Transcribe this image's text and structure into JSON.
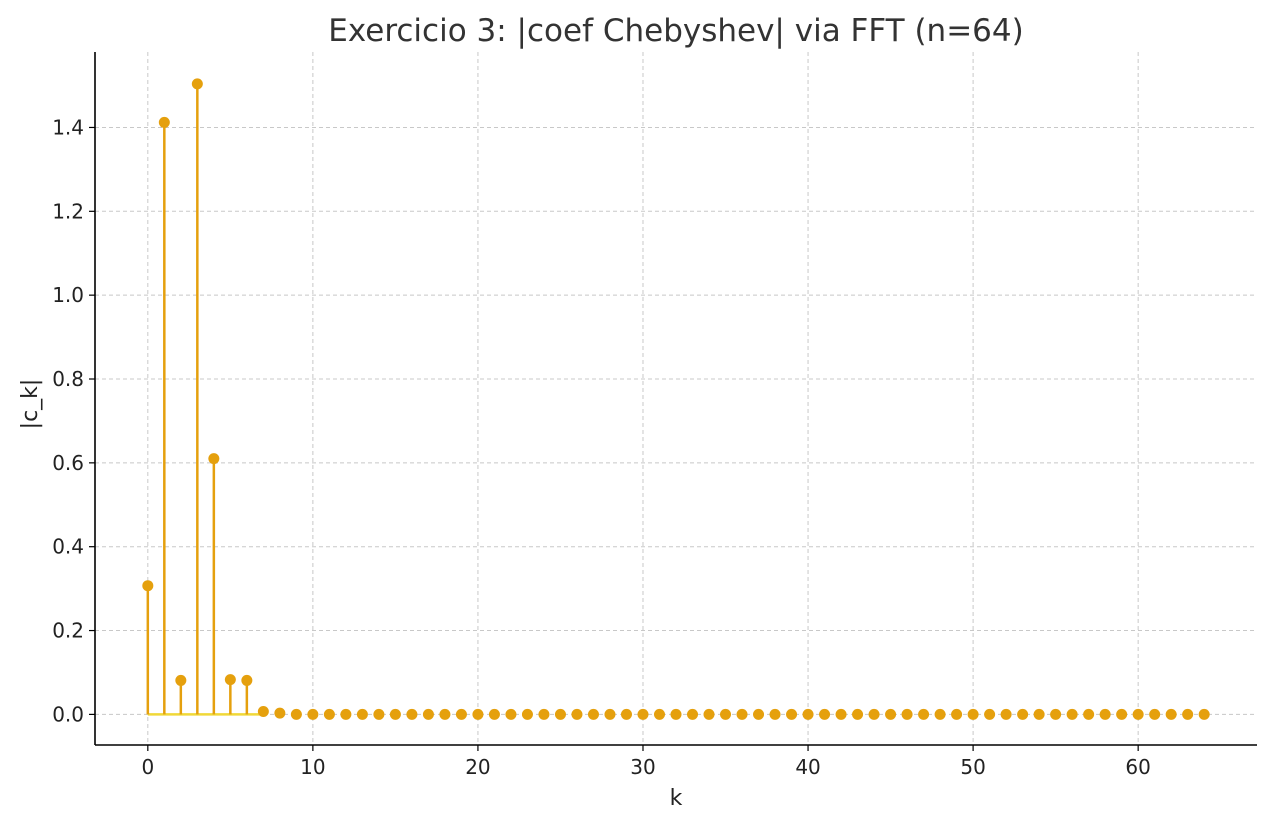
{
  "chart_data": {
    "type": "stem",
    "title": "Exercicio 3: |coef Chebyshev| via FFT (n=64)",
    "xlabel": "k",
    "ylabel": "|c_k|",
    "xlim": [
      -3.2,
      67.2
    ],
    "ylim": [
      -0.073,
      1.58
    ],
    "xticks": [
      0,
      10,
      20,
      30,
      40,
      50,
      60
    ],
    "yticks": [
      0.0,
      0.2,
      0.4,
      0.6,
      0.8,
      1.0,
      1.2,
      1.4
    ],
    "xtick_labels": [
      "0",
      "10",
      "20",
      "30",
      "40",
      "50",
      "60"
    ],
    "ytick_labels": [
      "0.0",
      "0.2",
      "0.4",
      "0.6",
      "0.8",
      "1.0",
      "1.2",
      "1.4"
    ],
    "grid": true,
    "colors": {
      "stem": "#e5a00d",
      "baseline": "#f0d838"
    },
    "x": [
      0,
      1,
      2,
      3,
      4,
      5,
      6,
      7,
      8,
      9,
      10,
      11,
      12,
      13,
      14,
      15,
      16,
      17,
      18,
      19,
      20,
      21,
      22,
      23,
      24,
      25,
      26,
      27,
      28,
      29,
      30,
      31,
      32,
      33,
      34,
      35,
      36,
      37,
      38,
      39,
      40,
      41,
      42,
      43,
      44,
      45,
      46,
      47,
      48,
      49,
      50,
      51,
      52,
      53,
      54,
      55,
      56,
      57,
      58,
      59,
      60,
      61,
      62,
      63,
      64
    ],
    "values": [
      0.307,
      1.412,
      0.081,
      1.504,
      0.61,
      0.083,
      0.081,
      0.007,
      0.003,
      0,
      0,
      0,
      0,
      0,
      0,
      0,
      0,
      0,
      0,
      0,
      0,
      0,
      0,
      0,
      0,
      0,
      0,
      0,
      0,
      0,
      0,
      0,
      0,
      0,
      0,
      0,
      0,
      0,
      0,
      0,
      0,
      0,
      0,
      0,
      0,
      0,
      0,
      0,
      0,
      0,
      0,
      0,
      0,
      0,
      0,
      0,
      0,
      0,
      0,
      0,
      0,
      0,
      0,
      0,
      0
    ],
    "baseline_end": 7
  }
}
